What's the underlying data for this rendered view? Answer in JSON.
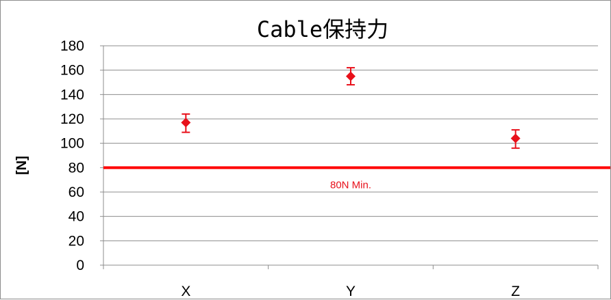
{
  "chart_data": {
    "type": "scatter",
    "title": "Cable保持力",
    "xlabel": "",
    "ylabel": "[N]",
    "ylim": [
      0,
      180
    ],
    "yticks": [
      0,
      20,
      40,
      60,
      80,
      100,
      120,
      140,
      160,
      180
    ],
    "grid": true,
    "legend": "none",
    "categories": [
      "X",
      "Y",
      "Z"
    ],
    "series": [
      {
        "values": [
          117,
          155,
          104
        ],
        "error_low": [
          109,
          148,
          96
        ],
        "error_high": [
          124,
          162,
          111
        ],
        "marker": "diamond",
        "color": "#e8101a"
      }
    ],
    "reference_line": {
      "value": 80,
      "label": "80N Min.",
      "color": "#ff0000"
    }
  }
}
